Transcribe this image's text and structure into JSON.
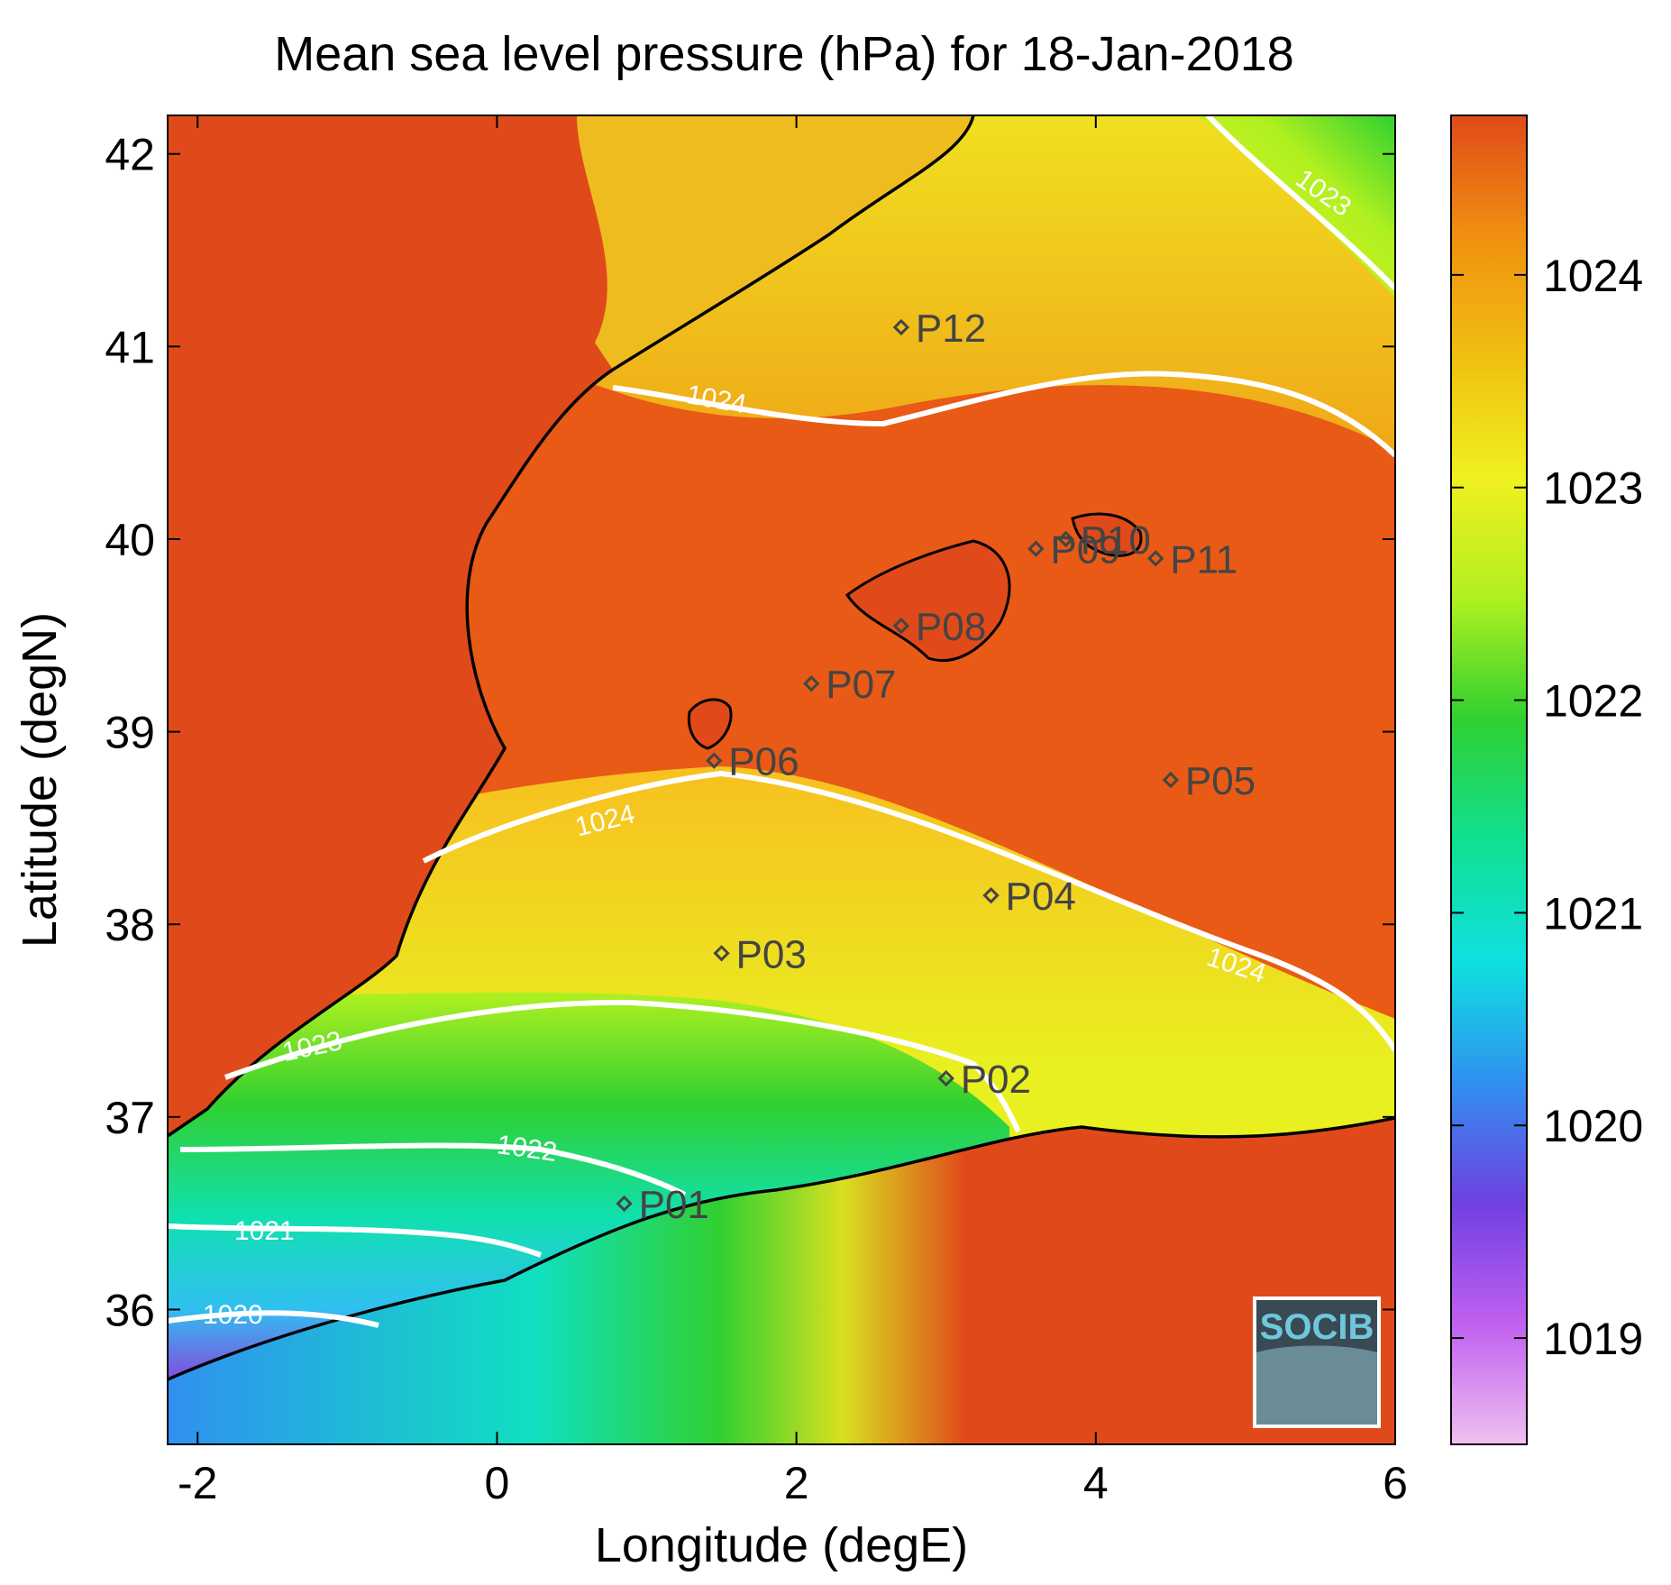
{
  "title": "Mean sea level pressure (hPa) for 18-Jan-2018",
  "x_axis": {
    "label": "Longitude (degE)",
    "ticks": [
      -2,
      0,
      2,
      4,
      6
    ],
    "tick_labels": [
      "-2",
      "0",
      "2",
      "4",
      "6"
    ],
    "range": [
      -2.2,
      6.0
    ]
  },
  "y_axis": {
    "label": "Latitude (degN)",
    "ticks": [
      36,
      37,
      38,
      39,
      40,
      41,
      42
    ],
    "tick_labels": [
      "36",
      "37",
      "38",
      "39",
      "40",
      "41",
      "42"
    ],
    "range": [
      35.3,
      42.2
    ]
  },
  "colorbar": {
    "ticks": [
      1019,
      1020,
      1021,
      1022,
      1023,
      1024
    ],
    "tick_labels": [
      "1019",
      "1020",
      "1021",
      "1022",
      "1023",
      "1024"
    ],
    "range": [
      1018.5,
      1024.75
    ],
    "colormap": [
      "#f0c0f0",
      "#c060f0",
      "#7040e0",
      "#3090f0",
      "#10e0e0",
      "#10e090",
      "#30d030",
      "#b0f020",
      "#f0f020",
      "#f0c010",
      "#f09010",
      "#e04a1a"
    ]
  },
  "stations": [
    {
      "label": "P01",
      "lon": 0.85,
      "lat": 36.55
    },
    {
      "label": "P02",
      "lon": 3.0,
      "lat": 37.2
    },
    {
      "label": "P03",
      "lon": 1.5,
      "lat": 37.85
    },
    {
      "label": "P04",
      "lon": 3.3,
      "lat": 38.15
    },
    {
      "label": "P05",
      "lon": 4.5,
      "lat": 38.75
    },
    {
      "label": "P06",
      "lon": 1.45,
      "lat": 38.85
    },
    {
      "label": "P07",
      "lon": 2.1,
      "lat": 39.25
    },
    {
      "label": "P08",
      "lon": 2.7,
      "lat": 39.55
    },
    {
      "label": "P09",
      "lon": 3.6,
      "lat": 39.95
    },
    {
      "label": "P10",
      "lon": 3.8,
      "lat": 40.0
    },
    {
      "label": "P11",
      "lon": 4.4,
      "lat": 39.9
    },
    {
      "label": "P12",
      "lon": 2.7,
      "lat": 41.1
    }
  ],
  "contours": [
    {
      "level": 1024,
      "label": "1024"
    },
    {
      "level": 1023,
      "label": "1023"
    },
    {
      "level": 1022,
      "label": "1022"
    },
    {
      "level": 1021,
      "label": "1021"
    },
    {
      "level": 1020,
      "label": "1020"
    }
  ],
  "logo": {
    "text": "SOCIB",
    "color": "#6ec8dc"
  },
  "colors": {
    "land_high": "#e04a1a",
    "coastline": "#000000",
    "contour": "#ffffff"
  }
}
